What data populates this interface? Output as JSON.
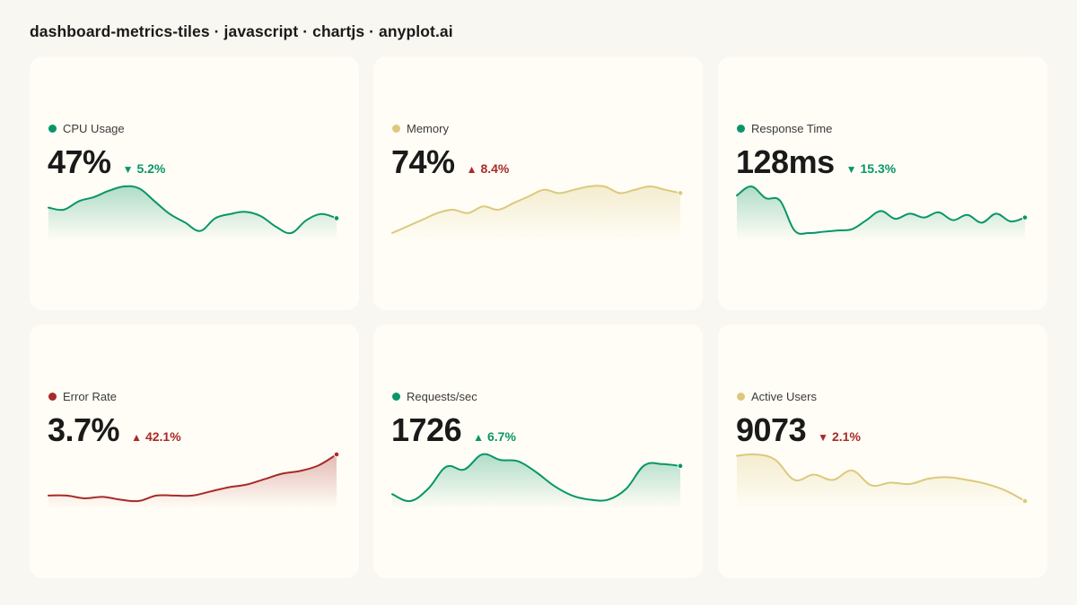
{
  "page_title": "dashboard-metrics-tiles · javascript · chartjs · anyplot.ai",
  "colors": {
    "good": "#079669",
    "bad": "#a82a2a",
    "neutral": "#dcc97e"
  },
  "chart_data": [
    {
      "type": "area",
      "label": "CPU Usage",
      "value_text": "47%",
      "delta_text": "5.2%",
      "delta_direction": "down",
      "status": "good",
      "color": "#079669",
      "values": [
        52,
        51,
        55,
        57,
        60,
        62,
        61,
        55,
        49,
        45,
        41,
        47,
        49,
        50,
        48,
        43,
        40,
        46,
        49,
        47
      ]
    },
    {
      "type": "area",
      "label": "Memory",
      "value_text": "74%",
      "delta_text": "8.4%",
      "delta_direction": "up",
      "status": "bad",
      "color": "#dcc97e",
      "values": [
        62,
        64,
        66,
        68,
        69,
        68,
        70,
        69,
        71,
        73,
        75,
        74,
        75,
        76,
        76,
        74,
        75,
        76,
        75,
        74
      ]
    },
    {
      "type": "area",
      "label": "Response Time",
      "value_text": "128ms",
      "delta_text": "15.3%",
      "delta_direction": "down",
      "status": "good",
      "color": "#079669",
      "values": [
        145,
        152,
        143,
        141,
        118,
        116,
        117,
        118,
        119,
        126,
        133,
        127,
        131,
        128,
        132,
        126,
        130,
        124,
        131,
        125,
        128
      ]
    },
    {
      "type": "area",
      "label": "Error Rate",
      "value_text": "3.7%",
      "delta_text": "42.1%",
      "delta_direction": "up",
      "status": "bad",
      "color": "#a82a2a",
      "values": [
        2.2,
        2.2,
        2.1,
        2.15,
        2.05,
        2.0,
        2.2,
        2.2,
        2.2,
        2.35,
        2.5,
        2.6,
        2.8,
        3.0,
        3.1,
        3.3,
        3.7
      ]
    },
    {
      "type": "area",
      "label": "Requests/sec",
      "value_text": "1726",
      "delta_text": "6.7%",
      "delta_direction": "up",
      "status": "good",
      "color": "#079669",
      "values": [
        1520,
        1470,
        1560,
        1720,
        1700,
        1810,
        1770,
        1760,
        1680,
        1580,
        1510,
        1480,
        1480,
        1560,
        1730,
        1740,
        1726
      ]
    },
    {
      "type": "area",
      "label": "Active Users",
      "value_text": "9073",
      "delta_text": "2.1%",
      "delta_direction": "down",
      "status": "bad",
      "color": "#dcc97e",
      "values": [
        9410,
        9420,
        9380,
        9230,
        9270,
        9230,
        9300,
        9190,
        9210,
        9200,
        9240,
        9250,
        9230,
        9200,
        9150,
        9073
      ]
    }
  ]
}
